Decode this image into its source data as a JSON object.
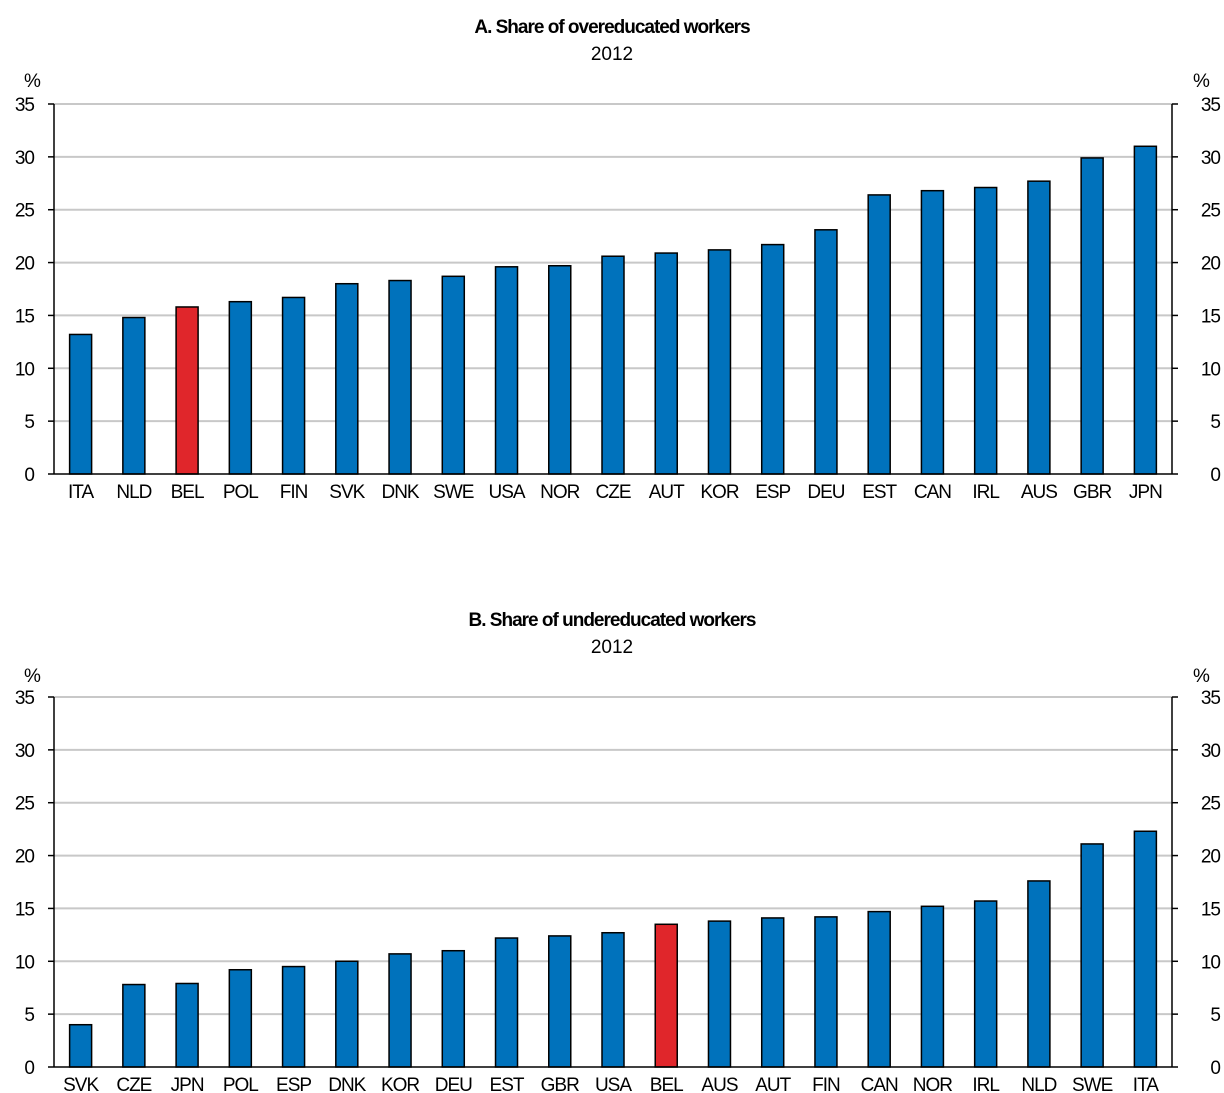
{
  "colors": {
    "bar": "#0072bc",
    "highlight": "#e0262b",
    "grid": "#c8c8c8"
  },
  "chart_data": [
    {
      "type": "bar",
      "title": "A. Share of overeducated workers",
      "subtitle": "2012",
      "unit_left": "%",
      "unit_right": "%",
      "ylim": [
        0,
        35
      ],
      "yticks": [
        "0",
        "5",
        "10",
        "15",
        "20",
        "25",
        "30",
        "35"
      ],
      "grid": true,
      "highlight": "BEL",
      "categories": [
        "ITA",
        "NLD",
        "BEL",
        "POL",
        "FIN",
        "SVK",
        "DNK",
        "SWE",
        "USA",
        "NOR",
        "CZE",
        "AUT",
        "KOR",
        "ESP",
        "DEU",
        "EST",
        "CAN",
        "IRL",
        "AUS",
        "GBR",
        "JPN"
      ],
      "values": [
        13.2,
        14.8,
        15.8,
        16.3,
        16.7,
        18.0,
        18.3,
        18.7,
        19.6,
        19.7,
        20.6,
        20.9,
        21.2,
        21.7,
        23.1,
        26.4,
        26.8,
        27.1,
        27.7,
        29.9,
        31.0
      ]
    },
    {
      "type": "bar",
      "title": "B. Share of undereducated workers",
      "subtitle": "2012",
      "unit_left": "%",
      "unit_right": "%",
      "ylim": [
        0,
        35
      ],
      "yticks": [
        "0",
        "5",
        "10",
        "15",
        "20",
        "25",
        "30",
        "35"
      ],
      "grid": true,
      "highlight": "BEL",
      "categories": [
        "SVK",
        "CZE",
        "JPN",
        "POL",
        "ESP",
        "DNK",
        "KOR",
        "DEU",
        "EST",
        "GBR",
        "USA",
        "BEL",
        "AUS",
        "AUT",
        "FIN",
        "CAN",
        "NOR",
        "IRL",
        "NLD",
        "SWE",
        "ITA"
      ],
      "values": [
        4.0,
        7.8,
        7.9,
        9.2,
        9.5,
        10.0,
        10.7,
        11.0,
        12.2,
        12.4,
        12.7,
        13.5,
        13.8,
        14.1,
        14.2,
        14.7,
        15.2,
        15.7,
        17.6,
        21.1,
        22.3
      ]
    }
  ]
}
